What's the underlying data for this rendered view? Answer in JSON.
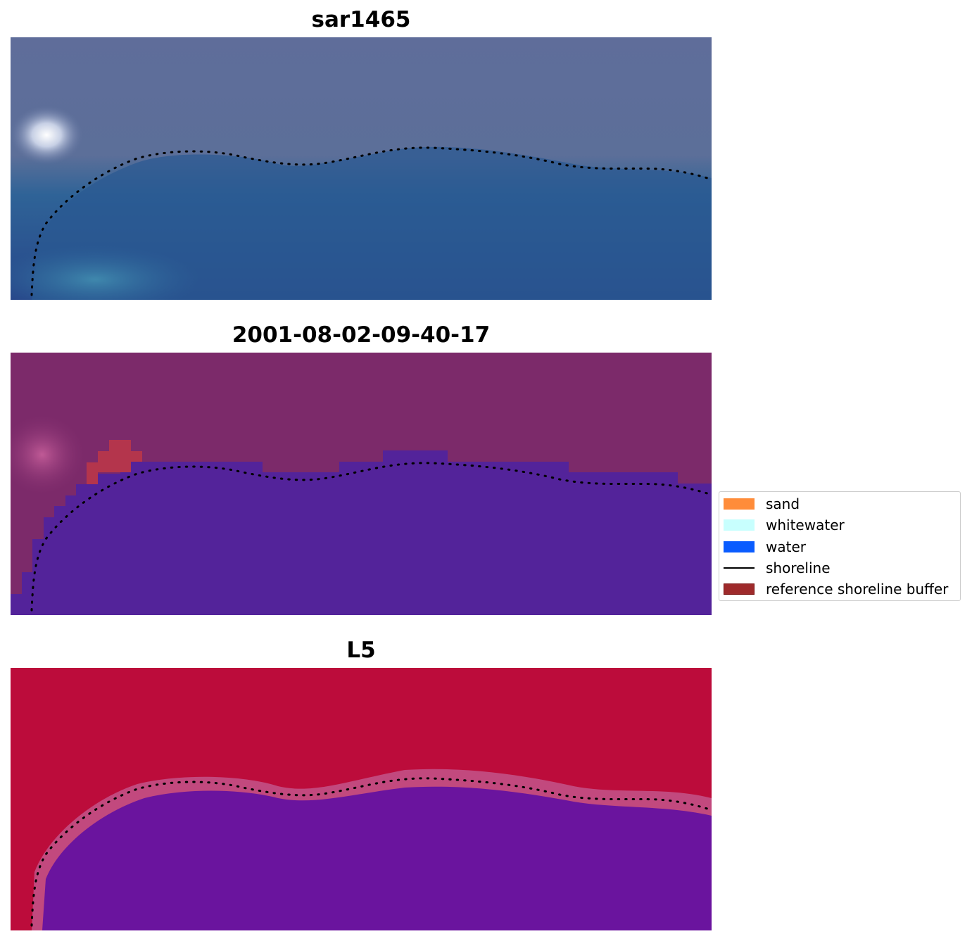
{
  "panels": [
    {
      "title": "sar1465"
    },
    {
      "title": "2001-08-02-09-40-17"
    },
    {
      "title": "L5"
    }
  ],
  "legend": {
    "items": [
      {
        "label": "sand",
        "kind": "patch",
        "color": "#ff8c3a"
      },
      {
        "label": "whitewater",
        "kind": "patch",
        "color": "#c8fffe"
      },
      {
        "label": "water",
        "kind": "patch",
        "color": "#0a5cff"
      },
      {
        "label": "shoreline",
        "kind": "line",
        "color": "#000000"
      },
      {
        "label": "reference shoreline buffer",
        "kind": "patch",
        "color": "#9e2a2b",
        "edge": "#7a1010"
      }
    ]
  },
  "colors": {
    "rgb_land": "#5e6c98",
    "rgb_water": "#2c5a94",
    "class_land": "#7c2a6a",
    "class_water": "#53239a",
    "mndwi_land": "#bc0c3b",
    "mndwi_water": "#64139e",
    "shoreline": "#000000"
  }
}
